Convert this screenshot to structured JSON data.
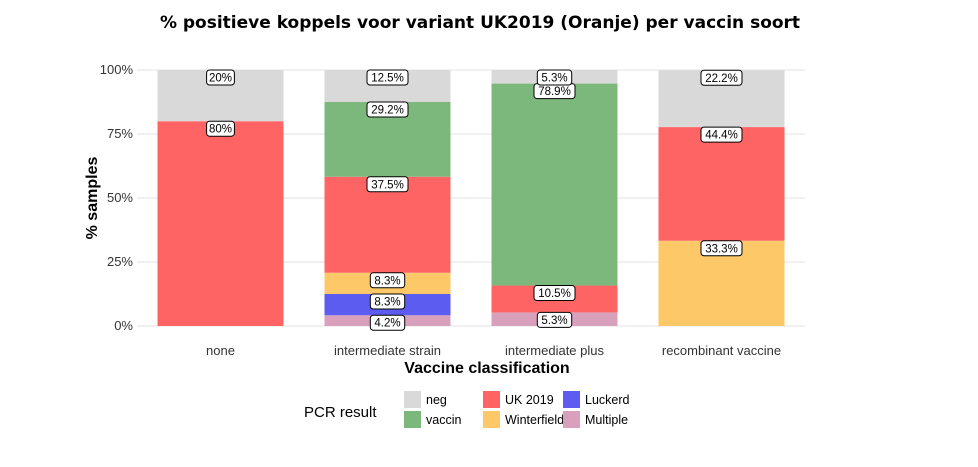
{
  "chart_data": {
    "type": "bar",
    "stacked": true,
    "title": "% positieve koppels voor variant UK2019 (Oranje) per vaccin soort",
    "xlabel": "Vaccine classification",
    "ylabel": "% samples",
    "ylim": [
      0,
      100
    ],
    "yticks": [
      "0%",
      "25%",
      "50%",
      "75%",
      "100%"
    ],
    "grid": true,
    "categories": [
      "none",
      "intermediate strain",
      "intermediate plus",
      "recombinant vaccine"
    ],
    "series": [
      {
        "name": "Multiple",
        "color": "#d8a0bb",
        "values": [
          0,
          4.2,
          5.3,
          0
        ],
        "labels": [
          "",
          "4.2%",
          "5.3%",
          ""
        ]
      },
      {
        "name": "Luckerd",
        "color": "#5c5cf0",
        "values": [
          0,
          8.3,
          0,
          0
        ],
        "labels": [
          "",
          "8.3%",
          "",
          ""
        ]
      },
      {
        "name": "Winterfield",
        "color": "#fcc868",
        "values": [
          0,
          8.3,
          0,
          33.3
        ],
        "labels": [
          "",
          "8.3%",
          "",
          "33.3%"
        ]
      },
      {
        "name": "UK 2019",
        "color": "#ff6464",
        "values": [
          80,
          37.5,
          10.5,
          44.4
        ],
        "labels": [
          "80%",
          "37.5%",
          "10.5%",
          "44.4%"
        ]
      },
      {
        "name": "vaccin",
        "color": "#7cb87c",
        "values": [
          0,
          29.2,
          78.9,
          0
        ],
        "labels": [
          "",
          "29.2%",
          "78.9%",
          ""
        ]
      },
      {
        "name": "neg",
        "color": "#d9d9d9",
        "values": [
          20,
          12.5,
          5.3,
          22.2
        ],
        "labels": [
          "20%",
          "12.5%",
          "5.3%",
          "22.2%"
        ]
      }
    ],
    "legend": {
      "title": "PCR result",
      "placement": "bottom",
      "order": [
        "neg",
        "vaccin",
        "UK 2019",
        "Winterfield",
        "Luckerd",
        "Multiple"
      ]
    }
  }
}
